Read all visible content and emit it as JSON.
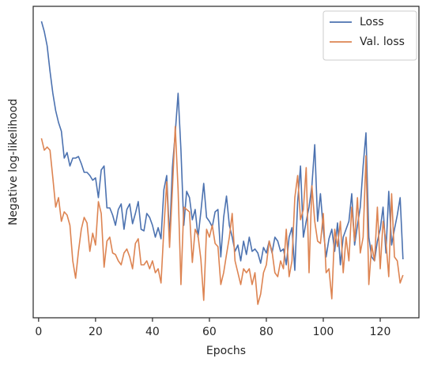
{
  "chart_data": {
    "type": "line",
    "x_label": "Epochs",
    "y_label": "Negative log-likelihood",
    "x": [
      1,
      2,
      3,
      4,
      5,
      6,
      7,
      8,
      9,
      10,
      11,
      12,
      13,
      14,
      15,
      16,
      17,
      18,
      19,
      20,
      21,
      22,
      23,
      24,
      25,
      26,
      27,
      28,
      29,
      30,
      31,
      32,
      33,
      34,
      35,
      36,
      37,
      38,
      39,
      40,
      41,
      42,
      43,
      44,
      45,
      46,
      47,
      48,
      49,
      50,
      51,
      52,
      53,
      54,
      55,
      56,
      57,
      58,
      59,
      60,
      61,
      62,
      63,
      64,
      65,
      66,
      67,
      68,
      69,
      70,
      71,
      72,
      73,
      74,
      75,
      76,
      77,
      78,
      79,
      80,
      81,
      82,
      83,
      84,
      85,
      86,
      87,
      88,
      89,
      90,
      91,
      92,
      93,
      94,
      95,
      96,
      97,
      98,
      99,
      100,
      101,
      102,
      103,
      104,
      105,
      106,
      107,
      108,
      109,
      110,
      111,
      112,
      113,
      114,
      115,
      116,
      117,
      118,
      119,
      120,
      121,
      122,
      123,
      124,
      125,
      126,
      127,
      128
    ],
    "series": [
      {
        "name": "Loss",
        "color": "#4c72b0",
        "values": [
          375,
          362,
          344,
          312,
          284,
          262,
          247,
          236,
          202,
          209,
          192,
          202,
          202,
          204,
          195,
          184,
          184,
          180,
          174,
          177,
          152,
          187,
          192,
          139,
          139,
          130,
          117,
          137,
          144,
          112,
          137,
          144,
          119,
          132,
          147,
          112,
          110,
          132,
          127,
          117,
          102,
          114,
          100,
          162,
          180,
          100,
          190,
          234,
          284,
          212,
          117,
          160,
          152,
          124,
          137,
          102,
          134,
          170,
          127,
          122,
          115,
          134,
          137,
          77,
          127,
          154,
          117,
          102,
          84,
          92,
          72,
          97,
          80,
          102,
          84,
          87,
          82,
          69,
          89,
          82,
          97,
          82,
          102,
          97,
          84,
          87,
          67,
          102,
          114,
          60,
          147,
          192,
          102,
          122,
          140,
          167,
          219,
          122,
          157,
          112,
          77,
          100,
          112,
          84,
          120,
          67,
          102,
          112,
          122,
          157,
          92,
          117,
          140,
          192,
          234,
          102,
          77,
          72,
          97,
          112,
          140,
          82,
          160,
          92,
          112,
          130,
          152,
          74
        ]
      },
      {
        "name": "Val. loss",
        "color": "#dd8452",
        "values": [
          227,
          212,
          216,
          212,
          177,
          140,
          152,
          122,
          134,
          130,
          117,
          72,
          50,
          84,
          112,
          127,
          120,
          84,
          107,
          92,
          147,
          132,
          64,
          97,
          102,
          82,
          80,
          72,
          67,
          82,
          87,
          77,
          62,
          94,
          100,
          67,
          67,
          72,
          62,
          72,
          57,
          62,
          44,
          112,
          172,
          89,
          162,
          242,
          162,
          42,
          140,
          137,
          134,
          70,
          112,
          104,
          74,
          22,
          112,
          102,
          117,
          94,
          90,
          42,
          57,
          80,
          102,
          132,
          72,
          57,
          42,
          62,
          57,
          62,
          42,
          57,
          17,
          30,
          57,
          67,
          97,
          84,
          57,
          52,
          72,
          62,
          112,
          52,
          72,
          152,
          180,
          124,
          137,
          190,
          57,
          167,
          122,
          97,
          94,
          132,
          57,
          62,
          24,
          112,
          90,
          122,
          57,
          102,
          72,
          140,
          97,
          152,
          82,
          102,
          205,
          42,
          92,
          72,
          140,
          62,
          122,
          97,
          52,
          157,
          77,
          72,
          44,
          54
        ]
      }
    ],
    "xlim": [
      -1.9,
      133.6
    ],
    "xticks": [
      0,
      20,
      40,
      60,
      80,
      100,
      120
    ],
    "ylim": [
      0,
      394
    ],
    "legend": "upper right"
  }
}
